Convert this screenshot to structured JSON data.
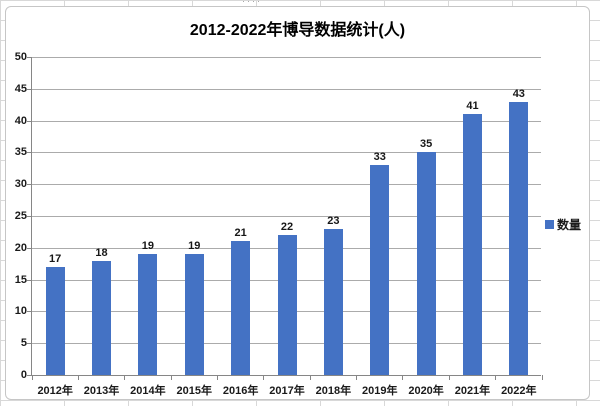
{
  "chart_data": {
    "type": "bar",
    "title": "2012-2022年博导数据统计(人)",
    "categories": [
      "2012年",
      "2013年",
      "2014年",
      "2015年",
      "2016年",
      "2017年",
      "2018年",
      "2019年",
      "2020年",
      "2021年",
      "2022年"
    ],
    "series": [
      {
        "name": "数量",
        "values": [
          17,
          18,
          19,
          19,
          21,
          22,
          23,
          33,
          35,
          41,
          43
        ]
      }
    ],
    "xlabel": "",
    "ylabel": "",
    "ylim": [
      0,
      50
    ],
    "ytick_step": 5,
    "grid": true,
    "legend_position": "right",
    "bar_color": "#4472C4",
    "gridline_color": "#ababab",
    "axis_color": "#868686",
    "label_color": "#171717"
  },
  "decor": {
    "handle_dots": "····"
  }
}
